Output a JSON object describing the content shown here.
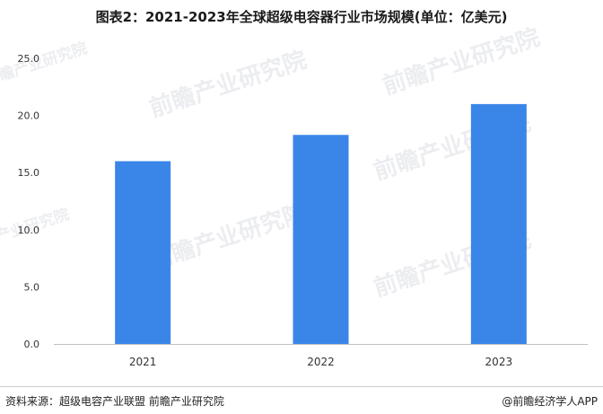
{
  "title": "图表2：2021-2023年全球超级电容器行业市场规模(单位：亿美元)",
  "chart_data": {
    "type": "bar",
    "categories": [
      "2021",
      "2022",
      "2023"
    ],
    "values": [
      16.0,
      18.3,
      21.0
    ],
    "ylim": [
      0,
      25
    ],
    "yticks": [
      "0.0",
      "5.0",
      "10.0",
      "15.0",
      "20.0",
      "25.0"
    ],
    "grid": false,
    "bar_color": "#3a86e8"
  },
  "watermark": "前瞻产业研究院",
  "footer": {
    "source": "资料来源：超级电容产业联盟 前瞻产业研究院",
    "brand": "@前瞻经济学人APP"
  }
}
